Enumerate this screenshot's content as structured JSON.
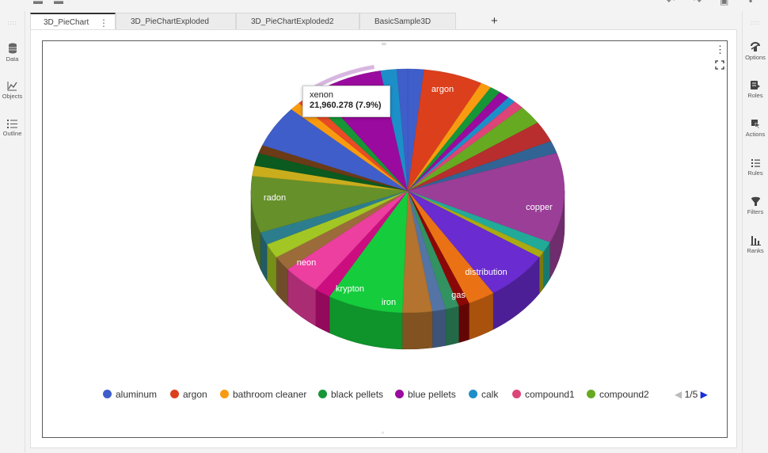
{
  "tabs": [
    {
      "label": "3D_PieChart",
      "active": true
    },
    {
      "label": "3D_PieChartExploded",
      "active": false
    },
    {
      "label": "3D_PieChartExploded2",
      "active": false
    },
    {
      "label": "BasicSample3D",
      "active": false
    }
  ],
  "add_tab_label": "+",
  "left_panel": [
    {
      "label": "Data",
      "icon": "database-icon"
    },
    {
      "label": "Objects",
      "icon": "line-chart-icon"
    },
    {
      "label": "Outline",
      "icon": "list-icon"
    }
  ],
  "right_panel": [
    {
      "label": "Options",
      "icon": "options-icon"
    },
    {
      "label": "Roles",
      "icon": "roles-icon"
    },
    {
      "label": "Actions",
      "icon": "actions-icon"
    },
    {
      "label": "Rules",
      "icon": "rules-icon"
    },
    {
      "label": "Filters",
      "icon": "filter-icon"
    },
    {
      "label": "Ranks",
      "icon": "ranks-icon"
    }
  ],
  "tooltip": {
    "title": "xenon",
    "value": "21,960.278 (7.9%)"
  },
  "pie_labels": [
    "argon",
    "copper",
    "distribution",
    "gas",
    "iron",
    "krypton",
    "neon",
    "radon"
  ],
  "legend": {
    "items": [
      {
        "label": "aluminum",
        "color": "#3f5ec9"
      },
      {
        "label": "argon",
        "color": "#dc3f1c"
      },
      {
        "label": "bathroom cleaner",
        "color": "#f99b10"
      },
      {
        "label": "black pellets",
        "color": "#169636"
      },
      {
        "label": "blue pellets",
        "color": "#9a0a9e"
      },
      {
        "label": "calk",
        "color": "#1c8fc9"
      },
      {
        "label": "compound1",
        "color": "#dd4477"
      },
      {
        "label": "compound2",
        "color": "#66aa22"
      }
    ],
    "page": "1/5"
  },
  "chart_data": {
    "type": "pie",
    "style": "3d",
    "labeled_slices": [
      "argon",
      "copper",
      "distribution",
      "gas",
      "iron",
      "krypton",
      "neon",
      "radon"
    ],
    "highlighted": {
      "label": "xenon",
      "value": 21960.278,
      "percent": 7.9
    },
    "legend_page": "1/5",
    "colors": {
      "argon": "#dc3f1c",
      "copper": "#9b3e98",
      "distribution": "#6a2bd0",
      "gas": "#ea7214",
      "iron": "#b4732e",
      "krypton": "#15cc3c",
      "neon": "#ec3fa0",
      "radon": "#66902a",
      "aluminum": "#3f5ec9",
      "xenon": "#9a0a9e"
    }
  }
}
